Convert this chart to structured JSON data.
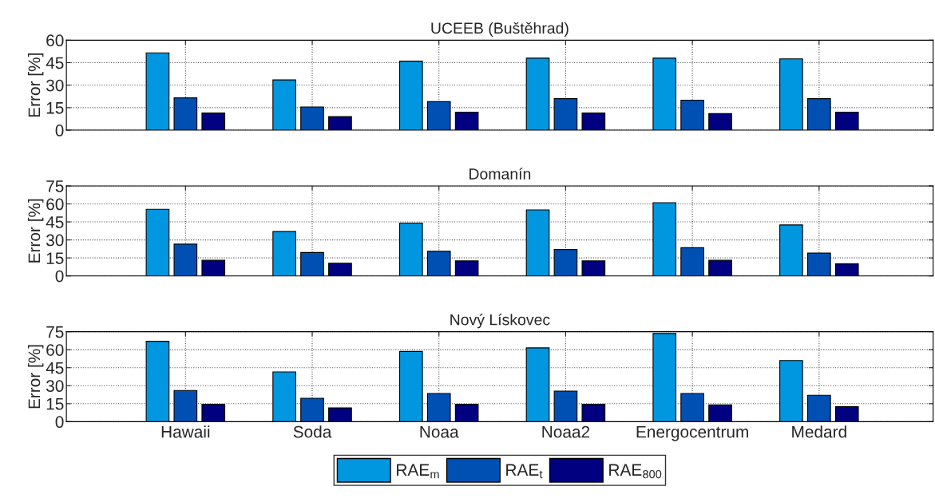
{
  "chart_data": [
    {
      "type": "bar",
      "title": "UCEEB (Buštěhrad)",
      "ylabel": "Error [%]",
      "categories": [
        null,
        null,
        null,
        null,
        null,
        null
      ],
      "tick_labels": "y",
      "ylim": [
        0,
        60
      ],
      "yticks": [
        0,
        15,
        30,
        45,
        60
      ],
      "grid": true,
      "series": [
        {
          "color": "#0096e0",
          "values": [
            51.5,
            33.5,
            46,
            48,
            48,
            47.5
          ]
        },
        {
          "color": "#0050b4",
          "values": [
            21.5,
            15.5,
            19,
            21,
            20,
            21
          ]
        },
        {
          "color": "#000080",
          "values": [
            11.5,
            9,
            12,
            11.5,
            11,
            12
          ]
        }
      ]
    },
    {
      "type": "bar",
      "title": "Domanín",
      "ylabel": "Error [%]",
      "categories": [
        null,
        null,
        null,
        null,
        null,
        null
      ],
      "tick_labels": "y",
      "ylim": [
        0,
        75
      ],
      "yticks": [
        0,
        15,
        30,
        45,
        60,
        75
      ],
      "grid": true,
      "series": [
        {
          "color": "#0096e0",
          "values": [
            55.5,
            37,
            44,
            55,
            61,
            42.5
          ]
        },
        {
          "color": "#0050b4",
          "values": [
            26.5,
            19.5,
            20.5,
            22,
            23.5,
            19
          ]
        },
        {
          "color": "#000080",
          "values": [
            13,
            10.5,
            12.5,
            12.5,
            13,
            10
          ]
        }
      ]
    },
    {
      "type": "bar",
      "title": "Nový Lískovec",
      "ylabel": "Error [%]",
      "categories": [
        "Hawaii",
        "Soda",
        "Noaa",
        "Noaa2",
        "Energocentrum",
        "Medard"
      ],
      "ylim": [
        0,
        75
      ],
      "yticks": [
        0,
        15,
        30,
        45,
        60,
        75
      ],
      "grid": true,
      "legend": "bottom",
      "series": [
        {
          "name": "RAE$_{m}$",
          "color": "#0096e0",
          "values": [
            67,
            41.5,
            58.5,
            61.5,
            73.5,
            51
          ]
        },
        {
          "name": "RAE$_{t}$",
          "color": "#0050b4",
          "values": [
            26,
            19.5,
            23.5,
            25.5,
            23.5,
            22
          ]
        },
        {
          "name": "RAE$_{800}$",
          "color": "#000080",
          "values": [
            14.5,
            11.5,
            14.5,
            14.5,
            14,
            12.5
          ]
        }
      ]
    }
  ]
}
